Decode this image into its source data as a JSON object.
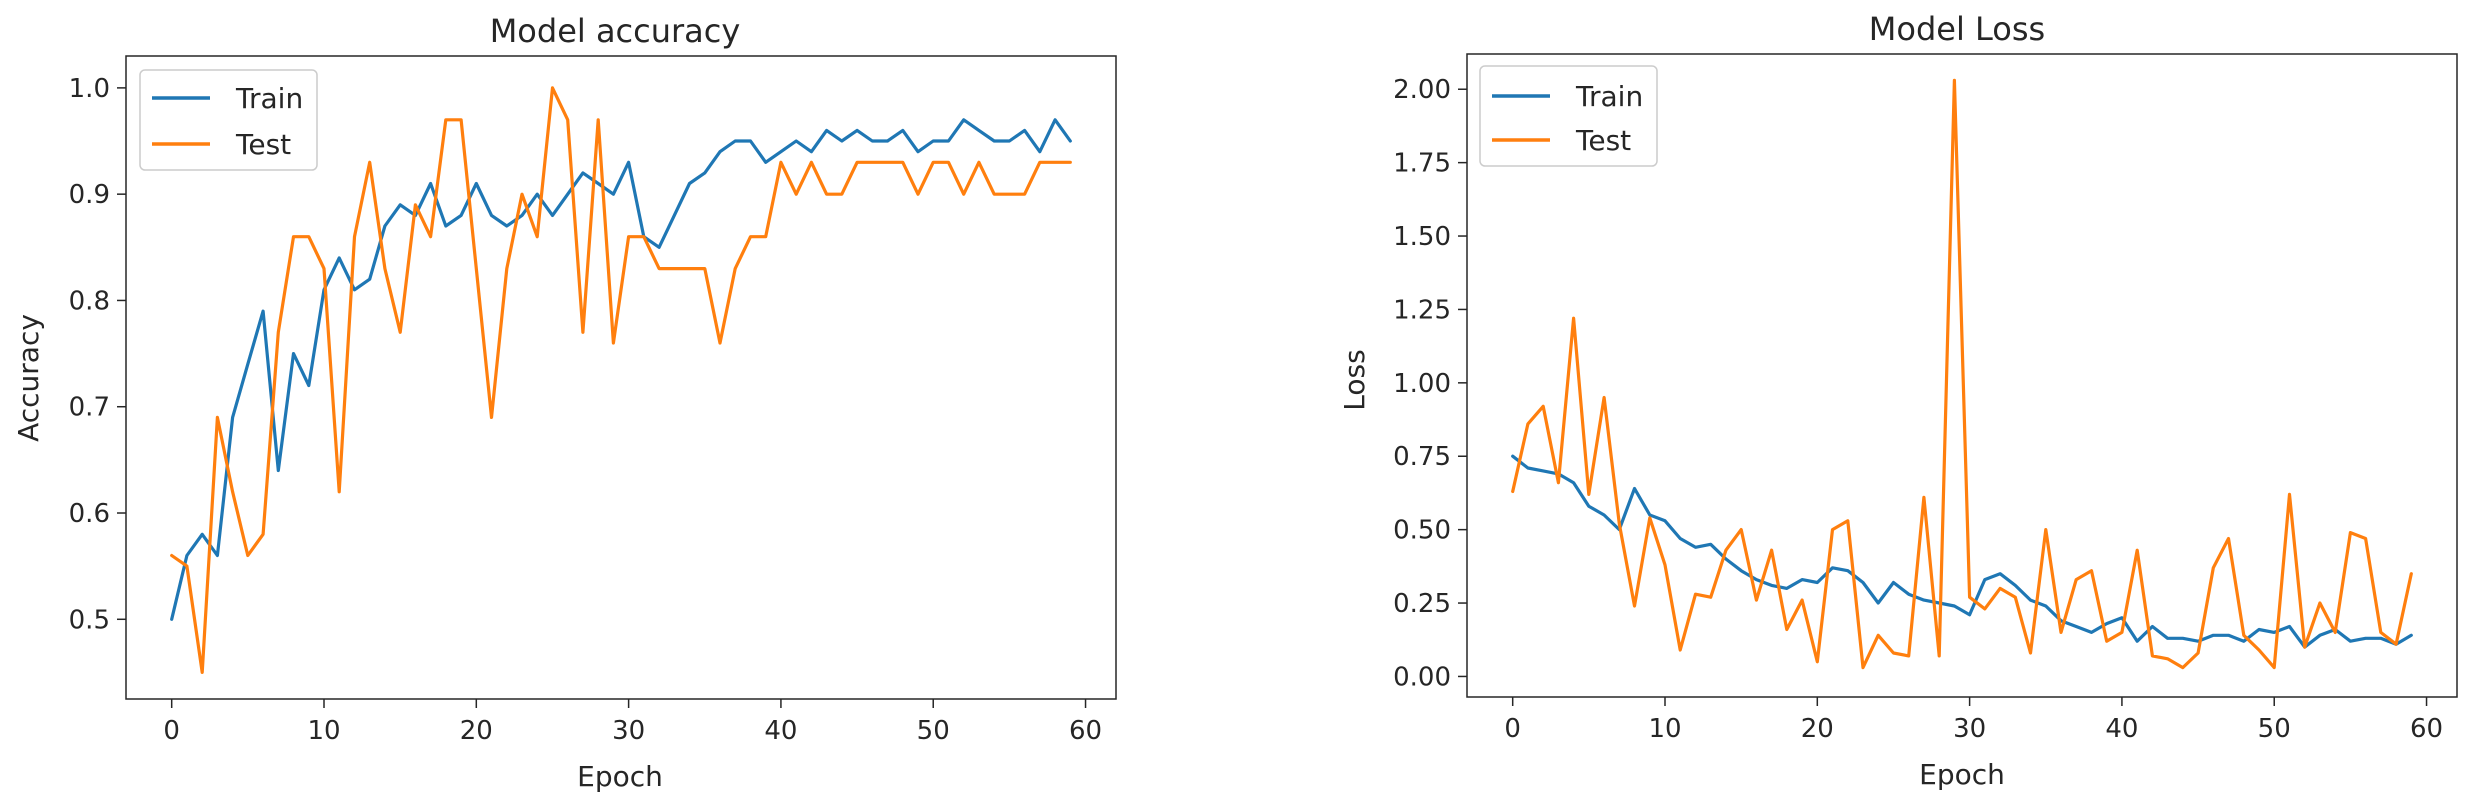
{
  "colors": {
    "train": "#1f77b4",
    "test": "#ff7f0e",
    "axis": "#262626",
    "background": "#ffffff"
  },
  "chart_data": [
    {
      "type": "line",
      "title": "Model accuracy",
      "xlabel": "Epoch",
      "ylabel": "Accuracy",
      "xlim": [
        -3,
        62
      ],
      "ylim": [
        0.425,
        1.03
      ],
      "xticks": [
        0,
        10,
        20,
        30,
        40,
        50,
        60
      ],
      "xtick_labels": [
        "0",
        "10",
        "20",
        "30",
        "40",
        "50",
        "60"
      ],
      "yticks": [
        0.5,
        0.6,
        0.7,
        0.8,
        0.9,
        1.0
      ],
      "ytick_labels": [
        "0.5",
        "0.6",
        "0.7",
        "0.8",
        "0.9",
        "1.0"
      ],
      "grid": false,
      "legend_position": "top-left",
      "series": [
        {
          "name": "Train",
          "color": "#1f77b4",
          "values": [
            0.5,
            0.56,
            0.58,
            0.56,
            0.69,
            0.74,
            0.79,
            0.64,
            0.75,
            0.72,
            0.81,
            0.84,
            0.81,
            0.82,
            0.87,
            0.89,
            0.88,
            0.91,
            0.87,
            0.88,
            0.91,
            0.88,
            0.87,
            0.88,
            0.9,
            0.88,
            0.9,
            0.92,
            0.91,
            0.9,
            0.93,
            0.86,
            0.85,
            0.88,
            0.91,
            0.92,
            0.94,
            0.95,
            0.95,
            0.93,
            0.94,
            0.95,
            0.94,
            0.96,
            0.95,
            0.96,
            0.95,
            0.95,
            0.96,
            0.94,
            0.95,
            0.95,
            0.97,
            0.96,
            0.95,
            0.95,
            0.96,
            0.94,
            0.97,
            0.95
          ]
        },
        {
          "name": "Test",
          "color": "#ff7f0e",
          "values": [
            0.56,
            0.55,
            0.45,
            0.69,
            0.62,
            0.56,
            0.58,
            0.77,
            0.86,
            0.86,
            0.83,
            0.62,
            0.86,
            0.93,
            0.83,
            0.77,
            0.89,
            0.86,
            0.97,
            0.97,
            0.83,
            0.69,
            0.83,
            0.9,
            0.86,
            1.0,
            0.97,
            0.77,
            0.97,
            0.76,
            0.86,
            0.86,
            0.83,
            0.83,
            0.83,
            0.83,
            0.76,
            0.83,
            0.86,
            0.86,
            0.93,
            0.9,
            0.93,
            0.9,
            0.9,
            0.93,
            0.93,
            0.93,
            0.93,
            0.9,
            0.93,
            0.93,
            0.9,
            0.93,
            0.9,
            0.9,
            0.9,
            0.93,
            0.93,
            0.93
          ]
        }
      ]
    },
    {
      "type": "line",
      "title": "Model Loss",
      "xlabel": "Epoch",
      "ylabel": "Loss",
      "xlim": [
        -3,
        62
      ],
      "ylim": [
        -0.07,
        2.12
      ],
      "xticks": [
        0,
        10,
        20,
        30,
        40,
        50,
        60
      ],
      "xtick_labels": [
        "0",
        "10",
        "20",
        "30",
        "40",
        "50",
        "60"
      ],
      "yticks": [
        0.0,
        0.25,
        0.5,
        0.75,
        1.0,
        1.25,
        1.5,
        1.75,
        2.0
      ],
      "ytick_labels": [
        "0.00",
        "0.25",
        "0.50",
        "0.75",
        "1.00",
        "1.25",
        "1.50",
        "1.75",
        "2.00"
      ],
      "grid": false,
      "legend_position": "top-left",
      "series": [
        {
          "name": "Train",
          "color": "#1f77b4",
          "values": [
            0.75,
            0.71,
            0.7,
            0.69,
            0.66,
            0.58,
            0.55,
            0.5,
            0.64,
            0.55,
            0.53,
            0.47,
            0.44,
            0.45,
            0.4,
            0.36,
            0.33,
            0.31,
            0.3,
            0.33,
            0.32,
            0.37,
            0.36,
            0.32,
            0.25,
            0.32,
            0.28,
            0.26,
            0.25,
            0.24,
            0.21,
            0.33,
            0.35,
            0.31,
            0.26,
            0.24,
            0.19,
            0.17,
            0.15,
            0.18,
            0.2,
            0.12,
            0.17,
            0.13,
            0.13,
            0.12,
            0.14,
            0.14,
            0.12,
            0.16,
            0.15,
            0.17,
            0.1,
            0.14,
            0.16,
            0.12,
            0.13,
            0.13,
            0.11,
            0.14
          ]
        },
        {
          "name": "Test",
          "color": "#ff7f0e",
          "values": [
            0.63,
            0.86,
            0.92,
            0.66,
            1.22,
            0.62,
            0.95,
            0.52,
            0.24,
            0.54,
            0.38,
            0.09,
            0.28,
            0.27,
            0.43,
            0.5,
            0.26,
            0.43,
            0.16,
            0.26,
            0.05,
            0.5,
            0.53,
            0.03,
            0.14,
            0.08,
            0.07,
            0.61,
            0.07,
            2.03,
            0.27,
            0.23,
            0.3,
            0.27,
            0.08,
            0.5,
            0.15,
            0.33,
            0.36,
            0.12,
            0.15,
            0.43,
            0.07,
            0.06,
            0.03,
            0.08,
            0.37,
            0.47,
            0.14,
            0.09,
            0.03,
            0.62,
            0.1,
            0.25,
            0.15,
            0.49,
            0.47,
            0.15,
            0.11,
            0.35
          ]
        }
      ]
    }
  ]
}
